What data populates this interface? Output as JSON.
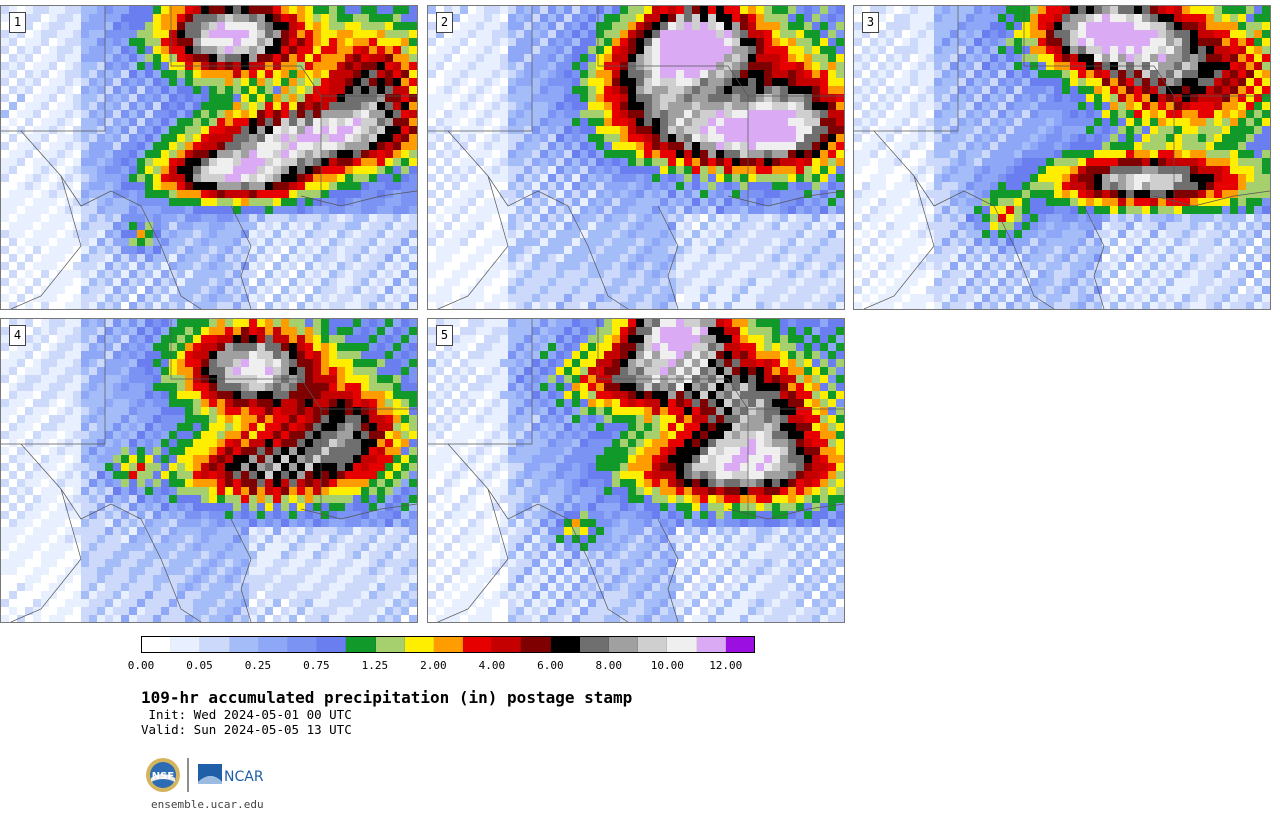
{
  "panels": [
    {
      "label": "1"
    },
    {
      "label": "2"
    },
    {
      "label": "3"
    },
    {
      "label": "4"
    },
    {
      "label": "5"
    }
  ],
  "colorbar": {
    "colors": [
      "#ffffff",
      "#e8f0ff",
      "#cdd9fb",
      "#a4bcf7",
      "#8ea8f7",
      "#7b93f3",
      "#6a7ef0",
      "#119a2a",
      "#a6cf6e",
      "#ffee00",
      "#ff9d00",
      "#e60000",
      "#c40000",
      "#7e0000",
      "#000000",
      "#6f6f6f",
      "#a0a0a0",
      "#cfcfcf",
      "#efefef",
      "#dbaaf5",
      "#9b10e0"
    ],
    "labels": [
      "0.00",
      "0.05",
      "0.25",
      "0.75",
      "1.25",
      "2.00",
      "4.00",
      "6.00",
      "8.00",
      "10.00",
      "12.00"
    ]
  },
  "title": "109-hr accumulated precipitation (in) postage stamp",
  "init": " Init: Wed 2024-05-01 00 UTC",
  "valid": "Valid: Sun 2024-05-05 13 UTC",
  "logos": {
    "left": "NSF",
    "right": "NCAR"
  },
  "site": "ensemble.ucar.edu"
}
